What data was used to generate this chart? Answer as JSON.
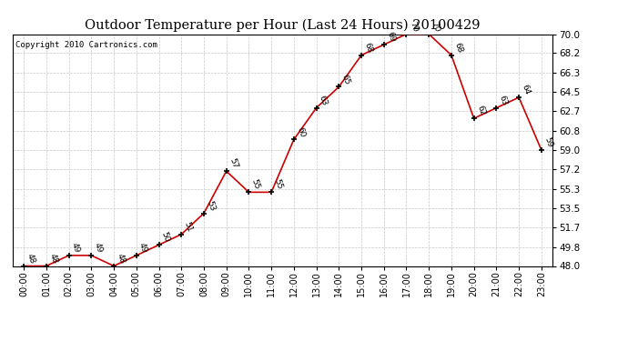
{
  "title": "Outdoor Temperature per Hour (Last 24 Hours) 20100429",
  "copyright": "Copyright 2010 Cartronics.com",
  "hours": [
    "00:00",
    "01:00",
    "02:00",
    "03:00",
    "04:00",
    "05:00",
    "06:00",
    "07:00",
    "08:00",
    "09:00",
    "10:00",
    "11:00",
    "12:00",
    "13:00",
    "14:00",
    "15:00",
    "16:00",
    "17:00",
    "18:00",
    "19:00",
    "20:00",
    "21:00",
    "22:00",
    "23:00"
  ],
  "temps": [
    48,
    48,
    49,
    49,
    48,
    49,
    50,
    51,
    53,
    57,
    55,
    55,
    60,
    63,
    65,
    68,
    69,
    70,
    70,
    68,
    62,
    63,
    64,
    59
  ],
  "line_color": "#cc0000",
  "marker_color": "#000000",
  "bg_color": "#ffffff",
  "grid_color": "#c8c8c8",
  "ylim_min": 48.0,
  "ylim_max": 70.0,
  "yticks": [
    48.0,
    49.8,
    51.7,
    53.5,
    55.3,
    57.2,
    59.0,
    60.8,
    62.7,
    64.5,
    66.3,
    68.2,
    70.0
  ]
}
